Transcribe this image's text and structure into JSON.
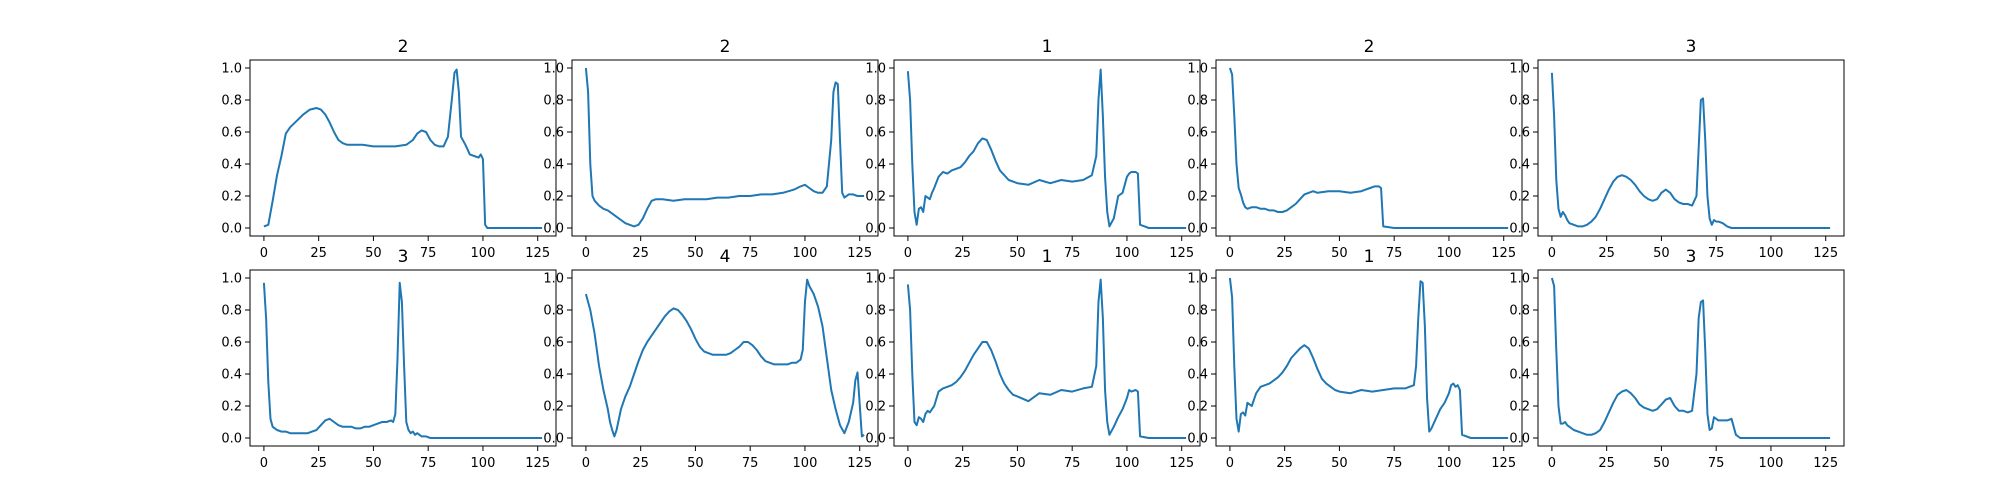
{
  "figure": {
    "line_color": "#1f77b4",
    "x_ticks": [
      "0",
      "25",
      "50",
      "75",
      "100",
      "125"
    ],
    "y_ticks": [
      "0.0",
      "0.2",
      "0.4",
      "0.6",
      "0.8",
      "1.0"
    ]
  },
  "chart_data": [
    {
      "type": "line",
      "title": "2",
      "xlim": [
        -6.35,
        133.35
      ],
      "ylim": [
        -0.05,
        1.05
      ],
      "grid": false,
      "x": [
        0,
        2,
        4,
        6,
        8,
        10,
        12,
        15,
        18,
        21,
        24,
        26,
        28,
        30,
        32,
        34,
        36,
        38,
        40,
        42,
        45,
        50,
        55,
        60,
        65,
        68,
        70,
        72,
        74,
        76,
        78,
        80,
        82,
        84,
        86,
        87,
        88,
        89,
        90,
        92,
        94,
        96,
        98,
        99,
        100,
        101,
        102,
        110,
        120,
        127
      ],
      "y": [
        0.01,
        0.02,
        0.17,
        0.33,
        0.45,
        0.59,
        0.63,
        0.67,
        0.71,
        0.74,
        0.75,
        0.74,
        0.71,
        0.66,
        0.6,
        0.55,
        0.53,
        0.52,
        0.52,
        0.52,
        0.52,
        0.51,
        0.51,
        0.51,
        0.52,
        0.55,
        0.59,
        0.61,
        0.6,
        0.55,
        0.52,
        0.51,
        0.51,
        0.57,
        0.83,
        0.97,
        0.99,
        0.85,
        0.57,
        0.52,
        0.46,
        0.45,
        0.44,
        0.46,
        0.43,
        0.02,
        0.0,
        0.0,
        0.0,
        0.0
      ]
    },
    {
      "type": "line",
      "title": "2",
      "xlim": [
        -6.35,
        133.35
      ],
      "ylim": [
        -0.05,
        1.05
      ],
      "grid": false,
      "x": [
        0,
        1,
        2,
        3,
        4,
        6,
        8,
        10,
        12,
        14,
        16,
        18,
        20,
        22,
        24,
        26,
        28,
        30,
        32,
        35,
        40,
        45,
        50,
        55,
        60,
        65,
        70,
        75,
        80,
        85,
        90,
        95,
        98,
        100,
        102,
        104,
        106,
        108,
        110,
        112,
        113,
        114,
        115,
        116,
        117,
        118,
        120,
        122,
        124,
        126,
        127
      ],
      "y": [
        1.0,
        0.85,
        0.4,
        0.2,
        0.17,
        0.14,
        0.12,
        0.11,
        0.09,
        0.07,
        0.05,
        0.03,
        0.02,
        0.01,
        0.02,
        0.06,
        0.12,
        0.17,
        0.18,
        0.18,
        0.17,
        0.18,
        0.18,
        0.18,
        0.19,
        0.19,
        0.2,
        0.2,
        0.21,
        0.21,
        0.22,
        0.24,
        0.26,
        0.27,
        0.25,
        0.23,
        0.22,
        0.22,
        0.26,
        0.55,
        0.85,
        0.91,
        0.9,
        0.55,
        0.22,
        0.19,
        0.21,
        0.21,
        0.2,
        0.2,
        0.2
      ]
    },
    {
      "type": "line",
      "title": "1",
      "xlim": [
        -6.35,
        133.35
      ],
      "ylim": [
        -0.05,
        1.05
      ],
      "grid": false,
      "x": [
        0,
        1,
        2,
        3,
        4,
        5,
        6,
        7,
        8,
        9,
        10,
        11,
        12,
        14,
        16,
        18,
        20,
        22,
        24,
        26,
        28,
        30,
        32,
        34,
        36,
        38,
        40,
        42,
        44,
        46,
        48,
        50,
        55,
        60,
        65,
        70,
        75,
        80,
        84,
        86,
        87,
        88,
        89,
        90,
        91,
        92,
        94,
        96,
        98,
        100,
        101,
        102,
        104,
        105,
        106,
        110,
        120,
        127
      ],
      "y": [
        0.98,
        0.8,
        0.4,
        0.1,
        0.02,
        0.12,
        0.13,
        0.1,
        0.2,
        0.19,
        0.18,
        0.22,
        0.25,
        0.32,
        0.35,
        0.34,
        0.36,
        0.37,
        0.38,
        0.41,
        0.45,
        0.48,
        0.53,
        0.56,
        0.55,
        0.49,
        0.42,
        0.36,
        0.33,
        0.3,
        0.29,
        0.28,
        0.27,
        0.3,
        0.28,
        0.3,
        0.29,
        0.3,
        0.33,
        0.45,
        0.8,
        0.99,
        0.7,
        0.32,
        0.1,
        0.01,
        0.06,
        0.2,
        0.22,
        0.32,
        0.34,
        0.35,
        0.35,
        0.34,
        0.02,
        0.0,
        0.0,
        0.0
      ]
    },
    {
      "type": "line",
      "title": "2",
      "xlim": [
        -6.35,
        133.35
      ],
      "ylim": [
        -0.05,
        1.05
      ],
      "grid": false,
      "x": [
        0,
        1,
        2,
        3,
        4,
        5,
        6,
        7,
        8,
        10,
        12,
        14,
        16,
        18,
        20,
        22,
        24,
        26,
        28,
        30,
        32,
        34,
        36,
        38,
        40,
        45,
        50,
        55,
        60,
        62,
        64,
        66,
        68,
        69,
        70,
        75,
        80,
        90,
        100,
        110,
        120,
        127
      ],
      "y": [
        1.0,
        0.96,
        0.7,
        0.4,
        0.25,
        0.21,
        0.16,
        0.13,
        0.12,
        0.13,
        0.13,
        0.12,
        0.12,
        0.11,
        0.11,
        0.1,
        0.1,
        0.11,
        0.13,
        0.15,
        0.18,
        0.21,
        0.22,
        0.23,
        0.22,
        0.23,
        0.23,
        0.22,
        0.23,
        0.24,
        0.25,
        0.26,
        0.26,
        0.25,
        0.01,
        0.0,
        0.0,
        0.0,
        0.0,
        0.0,
        0.0,
        0.0
      ]
    },
    {
      "type": "line",
      "title": "3",
      "xlim": [
        -6.35,
        133.35
      ],
      "ylim": [
        -0.05,
        1.05
      ],
      "grid": false,
      "x": [
        0,
        1,
        2,
        3,
        4,
        5,
        6,
        7,
        8,
        10,
        12,
        14,
        16,
        18,
        20,
        22,
        24,
        26,
        28,
        30,
        32,
        34,
        36,
        38,
        40,
        42,
        44,
        46,
        48,
        50,
        52,
        54,
        56,
        58,
        60,
        62,
        64,
        66,
        67,
        68,
        69,
        70,
        71,
        72,
        73,
        74,
        75,
        76,
        78,
        80,
        82,
        84,
        90,
        100,
        110,
        120,
        127
      ],
      "y": [
        0.97,
        0.7,
        0.3,
        0.12,
        0.07,
        0.1,
        0.08,
        0.05,
        0.03,
        0.02,
        0.01,
        0.01,
        0.02,
        0.04,
        0.07,
        0.12,
        0.18,
        0.24,
        0.29,
        0.32,
        0.33,
        0.32,
        0.3,
        0.27,
        0.23,
        0.2,
        0.18,
        0.17,
        0.18,
        0.22,
        0.24,
        0.22,
        0.18,
        0.16,
        0.15,
        0.15,
        0.14,
        0.2,
        0.5,
        0.8,
        0.81,
        0.55,
        0.2,
        0.06,
        0.02,
        0.05,
        0.04,
        0.04,
        0.03,
        0.01,
        0.0,
        0.0,
        0.0,
        0.0,
        0.0,
        0.0,
        0.0
      ]
    },
    {
      "type": "line",
      "title": "3",
      "xlim": [
        -6.35,
        133.35
      ],
      "ylim": [
        -0.05,
        1.05
      ],
      "grid": false,
      "x": [
        0,
        1,
        2,
        3,
        4,
        5,
        6,
        8,
        10,
        12,
        14,
        16,
        18,
        20,
        22,
        24,
        26,
        28,
        30,
        32,
        34,
        36,
        38,
        40,
        42,
        44,
        46,
        48,
        50,
        52,
        54,
        56,
        58,
        59,
        60,
        61,
        62,
        63,
        64,
        65,
        66,
        67,
        68,
        69,
        70,
        72,
        74,
        76,
        80,
        90,
        100,
        110,
        120,
        127
      ],
      "y": [
        0.97,
        0.75,
        0.35,
        0.12,
        0.07,
        0.06,
        0.05,
        0.04,
        0.04,
        0.03,
        0.03,
        0.03,
        0.03,
        0.03,
        0.04,
        0.05,
        0.08,
        0.11,
        0.12,
        0.1,
        0.08,
        0.07,
        0.07,
        0.07,
        0.06,
        0.06,
        0.07,
        0.07,
        0.08,
        0.09,
        0.1,
        0.1,
        0.11,
        0.1,
        0.15,
        0.5,
        0.97,
        0.85,
        0.45,
        0.1,
        0.05,
        0.03,
        0.04,
        0.02,
        0.03,
        0.01,
        0.01,
        0.0,
        0.0,
        0.0,
        0.0,
        0.0,
        0.0,
        0.0
      ]
    },
    {
      "type": "line",
      "title": "4",
      "xlim": [
        -6.35,
        133.35
      ],
      "ylim": [
        -0.05,
        1.05
      ],
      "grid": false,
      "x": [
        0,
        2,
        4,
        6,
        8,
        10,
        11,
        12,
        13,
        14,
        16,
        18,
        20,
        22,
        24,
        26,
        28,
        30,
        32,
        34,
        36,
        38,
        40,
        42,
        44,
        46,
        48,
        50,
        52,
        54,
        56,
        58,
        60,
        62,
        64,
        66,
        68,
        70,
        72,
        74,
        76,
        78,
        80,
        82,
        84,
        86,
        88,
        90,
        92,
        94,
        96,
        98,
        99,
        100,
        101,
        102,
        104,
        106,
        108,
        110,
        112,
        114,
        116,
        118,
        120,
        122,
        123,
        124,
        126,
        127
      ],
      "y": [
        0.9,
        0.8,
        0.65,
        0.45,
        0.3,
        0.18,
        0.1,
        0.05,
        0.01,
        0.05,
        0.18,
        0.26,
        0.32,
        0.4,
        0.48,
        0.55,
        0.6,
        0.64,
        0.68,
        0.72,
        0.76,
        0.79,
        0.81,
        0.8,
        0.77,
        0.73,
        0.68,
        0.62,
        0.57,
        0.54,
        0.53,
        0.52,
        0.52,
        0.52,
        0.52,
        0.53,
        0.55,
        0.57,
        0.6,
        0.6,
        0.58,
        0.55,
        0.51,
        0.48,
        0.47,
        0.46,
        0.46,
        0.46,
        0.46,
        0.47,
        0.47,
        0.49,
        0.55,
        0.85,
        0.99,
        0.95,
        0.9,
        0.82,
        0.7,
        0.5,
        0.3,
        0.18,
        0.08,
        0.03,
        0.1,
        0.22,
        0.36,
        0.41,
        0.01,
        0.02
      ]
    },
    {
      "type": "line",
      "title": "1",
      "xlim": [
        -6.35,
        133.35
      ],
      "ylim": [
        -0.05,
        1.05
      ],
      "grid": false,
      "x": [
        0,
        1,
        2,
        3,
        4,
        5,
        6,
        7,
        8,
        9,
        10,
        11,
        12,
        14,
        16,
        18,
        20,
        22,
        24,
        26,
        28,
        30,
        32,
        34,
        36,
        38,
        40,
        42,
        44,
        46,
        48,
        50,
        55,
        60,
        65,
        70,
        75,
        80,
        84,
        86,
        87,
        88,
        89,
        90,
        91,
        92,
        94,
        96,
        98,
        100,
        101,
        102,
        104,
        105,
        106,
        110,
        120,
        127
      ],
      "y": [
        0.96,
        0.8,
        0.4,
        0.1,
        0.08,
        0.13,
        0.12,
        0.1,
        0.15,
        0.17,
        0.16,
        0.18,
        0.2,
        0.29,
        0.31,
        0.32,
        0.33,
        0.35,
        0.38,
        0.42,
        0.47,
        0.52,
        0.56,
        0.6,
        0.6,
        0.55,
        0.48,
        0.4,
        0.34,
        0.3,
        0.27,
        0.26,
        0.23,
        0.28,
        0.27,
        0.3,
        0.29,
        0.31,
        0.32,
        0.45,
        0.85,
        0.99,
        0.75,
        0.3,
        0.1,
        0.02,
        0.07,
        0.13,
        0.18,
        0.25,
        0.3,
        0.29,
        0.3,
        0.29,
        0.01,
        0.0,
        0.0,
        0.0
      ]
    },
    {
      "type": "line",
      "title": "1",
      "xlim": [
        -6.35,
        133.35
      ],
      "ylim": [
        -0.05,
        1.05
      ],
      "grid": false,
      "x": [
        0,
        1,
        2,
        3,
        4,
        5,
        6,
        7,
        8,
        9,
        10,
        11,
        12,
        14,
        16,
        18,
        20,
        22,
        24,
        26,
        28,
        30,
        32,
        34,
        36,
        38,
        40,
        42,
        44,
        46,
        48,
        50,
        55,
        60,
        65,
        70,
        75,
        80,
        84,
        85,
        86,
        87,
        88,
        89,
        90,
        91,
        92,
        94,
        96,
        98,
        100,
        101,
        102,
        103,
        104,
        105,
        106,
        110,
        120,
        127
      ],
      "y": [
        1.0,
        0.88,
        0.45,
        0.12,
        0.04,
        0.15,
        0.16,
        0.14,
        0.22,
        0.21,
        0.2,
        0.24,
        0.28,
        0.32,
        0.33,
        0.34,
        0.36,
        0.38,
        0.41,
        0.45,
        0.5,
        0.53,
        0.56,
        0.58,
        0.56,
        0.5,
        0.43,
        0.37,
        0.34,
        0.32,
        0.3,
        0.29,
        0.28,
        0.3,
        0.29,
        0.3,
        0.31,
        0.31,
        0.33,
        0.45,
        0.75,
        0.98,
        0.97,
        0.7,
        0.25,
        0.04,
        0.06,
        0.12,
        0.18,
        0.22,
        0.28,
        0.33,
        0.34,
        0.32,
        0.33,
        0.3,
        0.02,
        0.0,
        0.0,
        0.0
      ]
    },
    {
      "type": "line",
      "title": "3",
      "xlim": [
        -6.35,
        133.35
      ],
      "ylim": [
        -0.05,
        1.05
      ],
      "grid": false,
      "x": [
        0,
        1,
        2,
        3,
        4,
        5,
        6,
        7,
        8,
        10,
        12,
        14,
        16,
        18,
        20,
        22,
        24,
        26,
        28,
        30,
        32,
        34,
        36,
        38,
        40,
        42,
        44,
        46,
        48,
        50,
        52,
        54,
        56,
        58,
        60,
        62,
        64,
        66,
        67,
        68,
        69,
        70,
        71,
        72,
        73,
        74,
        75,
        76,
        78,
        80,
        82,
        84,
        86,
        90,
        100,
        110,
        120,
        127
      ],
      "y": [
        1.0,
        0.95,
        0.55,
        0.2,
        0.09,
        0.09,
        0.1,
        0.08,
        0.07,
        0.05,
        0.04,
        0.03,
        0.02,
        0.02,
        0.03,
        0.05,
        0.1,
        0.16,
        0.22,
        0.27,
        0.29,
        0.3,
        0.28,
        0.25,
        0.21,
        0.19,
        0.18,
        0.17,
        0.18,
        0.21,
        0.24,
        0.25,
        0.2,
        0.17,
        0.17,
        0.16,
        0.17,
        0.4,
        0.75,
        0.85,
        0.86,
        0.55,
        0.15,
        0.05,
        0.06,
        0.13,
        0.12,
        0.11,
        0.11,
        0.11,
        0.12,
        0.02,
        0.0,
        0.0,
        0.0,
        0.0,
        0.0,
        0.0
      ]
    }
  ]
}
